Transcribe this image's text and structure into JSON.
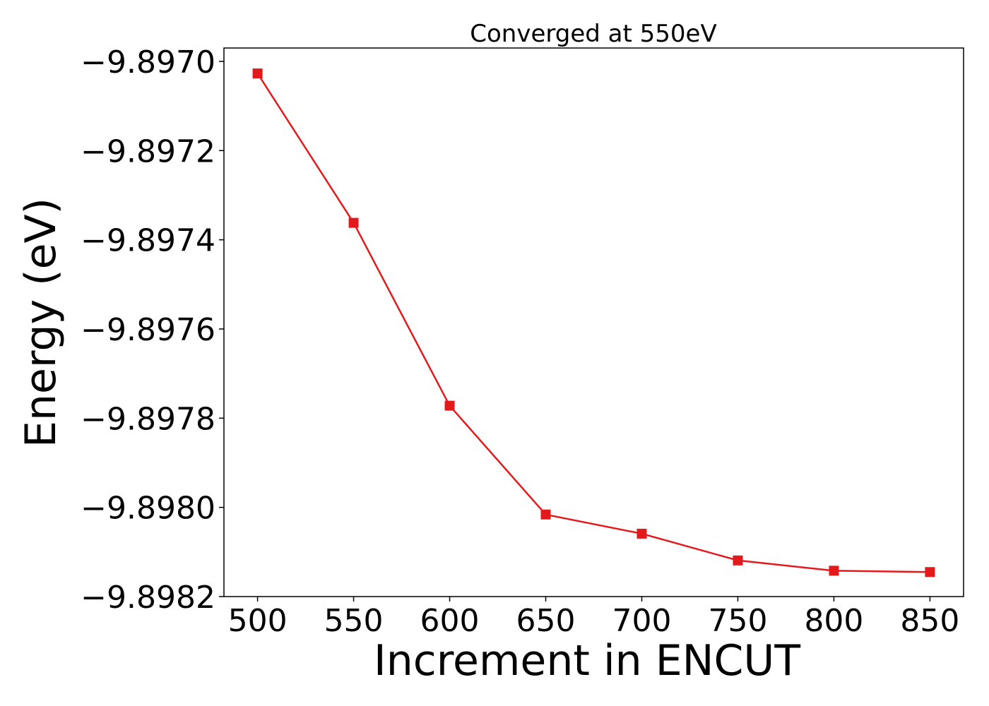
{
  "chart_data": {
    "type": "line",
    "title": "Converged at 550eV",
    "xlabel": "Increment in ENCUT",
    "ylabel": "Energy (eV)",
    "x": [
      500,
      550,
      600,
      650,
      700,
      750,
      800,
      850
    ],
    "x_ticks": [
      500,
      550,
      600,
      650,
      700,
      750,
      800,
      850
    ],
    "x_tick_labels": [
      "500",
      "550",
      "600",
      "650",
      "700",
      "750",
      "800",
      "850"
    ],
    "y_ticks": [
      -9.897,
      -9.8972,
      -9.8974,
      -9.8976,
      -9.8978,
      -9.898,
      -9.8982
    ],
    "y_tick_labels": [
      "−9.8970",
      "−9.8972",
      "−9.8974",
      "−9.8976",
      "−9.8978",
      "−9.8980",
      "−9.8982"
    ],
    "xlim": [
      482.5,
      867.5
    ],
    "ylim": [
      -9.8982,
      -9.89697
    ],
    "grid": false,
    "series": [
      {
        "values": [
          -9.897027,
          -9.897362,
          -9.897772,
          -9.898016,
          -9.898059,
          -9.898119,
          -9.898142,
          -9.898145
        ],
        "color": "#e31a1c",
        "marker": "square"
      }
    ]
  }
}
